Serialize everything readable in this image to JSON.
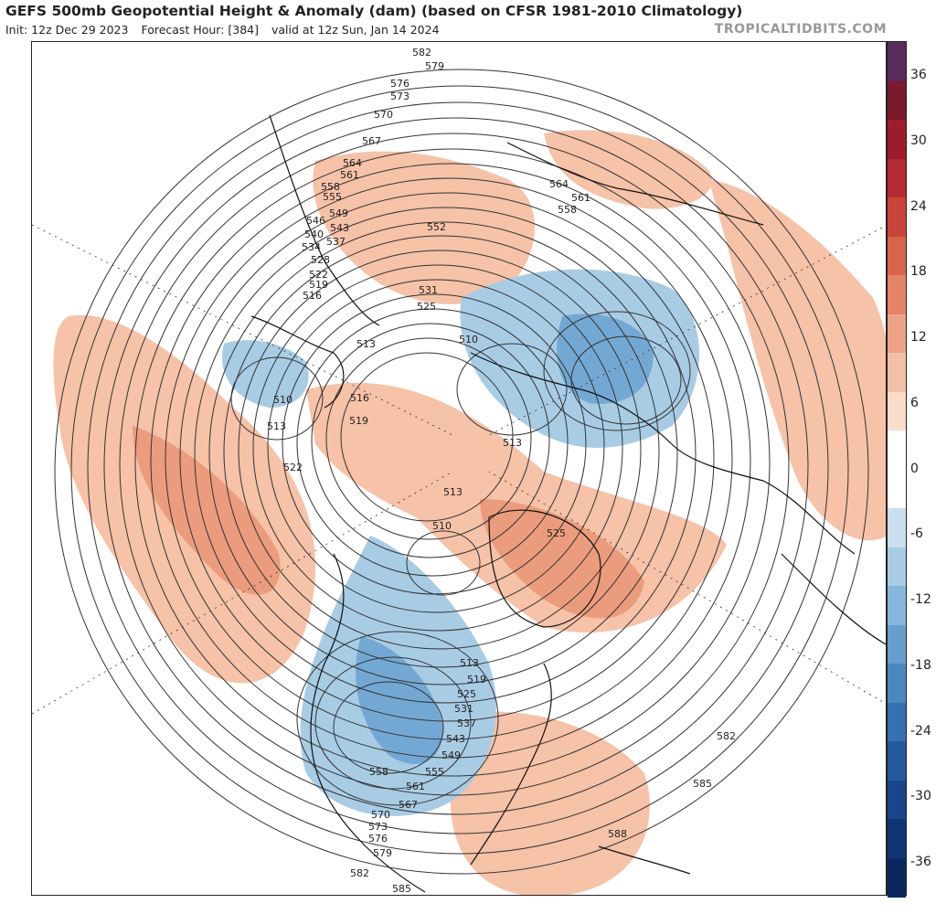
{
  "header": {
    "title": "GEFS 500mb Geopotential Height & Anomaly (dam) (based on CFSR 1981-2010 Climatology)",
    "init": "Init: 12z Dec 29 2023",
    "forecast_hour": "Forecast Hour: [384]",
    "valid": "valid at 12z Sun, Jan 14 2024",
    "brand": "TROPICALTIDBITS.COM"
  },
  "colorbar": {
    "labels": [
      "36",
      "30",
      "24",
      "18",
      "12",
      "6",
      "0",
      "-6",
      "-12",
      "-18",
      "-24",
      "-30",
      "-36"
    ],
    "colors": [
      "#5a2a5c",
      "#7a1a2a",
      "#9c1c2c",
      "#b52a33",
      "#c84438",
      "#d8644a",
      "#e58466",
      "#eda286",
      "#f3c0a6",
      "#f9dcc9",
      "#ffffff",
      "#ffffff",
      "#c9dfee",
      "#a8cce4",
      "#86b6d9",
      "#669fcc",
      "#4b88bf",
      "#3670b0",
      "#245a9c",
      "#18468a",
      "#0f3575",
      "#0b2760"
    ]
  },
  "contour_labels": [
    "582",
    "579",
    "576",
    "573",
    "570",
    "567",
    "564",
    "561",
    "558",
    "555",
    "552",
    "549",
    "546",
    "543",
    "540",
    "537",
    "534",
    "531",
    "528",
    "525",
    "522",
    "519",
    "516",
    "513",
    "510",
    "564",
    "561",
    "558",
    "510",
    "513",
    "516",
    "519",
    "522",
    "513",
    "513",
    "510",
    "525",
    "513",
    "519",
    "525",
    "531",
    "537",
    "543",
    "549",
    "555",
    "558",
    "561",
    "567",
    "570",
    "573",
    "576",
    "579",
    "582",
    "585",
    "582",
    "585",
    "588"
  ],
  "anomalies": {
    "positive_color": "#f3b59a",
    "strong_positive_color": "#e8866a",
    "negative_color": "#9cc4e0",
    "strong_negative_color": "#5a98cc"
  }
}
